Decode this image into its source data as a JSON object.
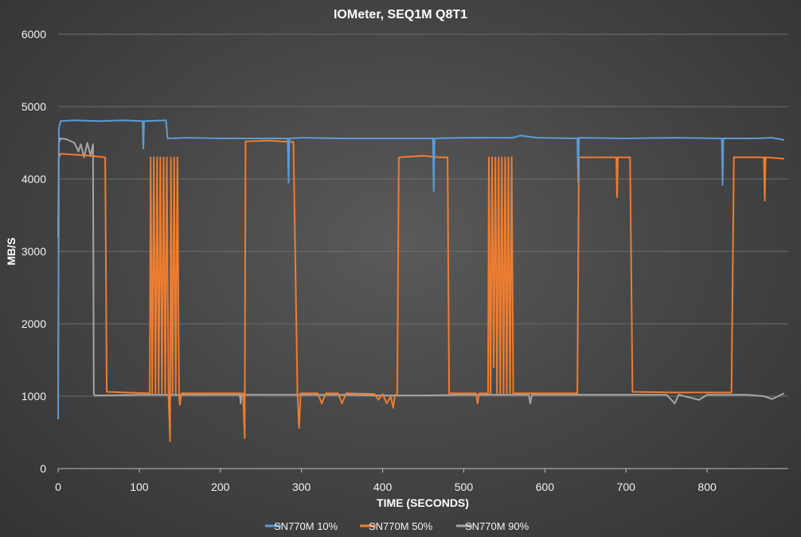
{
  "chart_data": {
    "type": "line",
    "title": "IOMeter,  SEQ1M  Q8T1",
    "xlabel": "TIME (SECONDS)",
    "ylabel": "MB/S",
    "xlim": [
      0,
      900
    ],
    "ylim": [
      0,
      6000
    ],
    "xticks": [
      0,
      100,
      200,
      300,
      400,
      500,
      600,
      700,
      800
    ],
    "yticks": [
      0,
      1000,
      2000,
      3000,
      4000,
      5000,
      6000
    ],
    "grid": "horizontal",
    "legend_position": "bottom",
    "series": [
      {
        "name": "SN770M 10%",
        "color": "#5b9bd5",
        "points": [
          [
            0,
            680
          ],
          [
            1,
            4700
          ],
          [
            3,
            4800
          ],
          [
            20,
            4810
          ],
          [
            50,
            4800
          ],
          [
            80,
            4810
          ],
          [
            104,
            4800
          ],
          [
            105,
            4420
          ],
          [
            106,
            4800
          ],
          [
            133,
            4810
          ],
          [
            135,
            4560
          ],
          [
            160,
            4570
          ],
          [
            200,
            4560
          ],
          [
            250,
            4560
          ],
          [
            283,
            4560
          ],
          [
            284,
            3950
          ],
          [
            285,
            4560
          ],
          [
            300,
            4570
          ],
          [
            350,
            4560
          ],
          [
            400,
            4560
          ],
          [
            462,
            4560
          ],
          [
            463,
            3830
          ],
          [
            464,
            4560
          ],
          [
            500,
            4570
          ],
          [
            560,
            4570
          ],
          [
            570,
            4600
          ],
          [
            590,
            4570
          ],
          [
            640,
            4560
          ],
          [
            641,
            3960
          ],
          [
            642,
            4570
          ],
          [
            700,
            4560
          ],
          [
            760,
            4570
          ],
          [
            818,
            4560
          ],
          [
            819,
            3920
          ],
          [
            820,
            4560
          ],
          [
            860,
            4560
          ],
          [
            880,
            4570
          ],
          [
            895,
            4540
          ]
        ]
      },
      {
        "name": "SN770M 50%",
        "color": "#ed7d31",
        "points": [
          [
            0,
            1000
          ],
          [
            1,
            4300
          ],
          [
            3,
            4350
          ],
          [
            30,
            4330
          ],
          [
            58,
            4300
          ],
          [
            60,
            1060
          ],
          [
            113,
            1040
          ],
          [
            114,
            4300
          ],
          [
            116,
            1040
          ],
          [
            118,
            4300
          ],
          [
            120,
            1040
          ],
          [
            122,
            4300
          ],
          [
            124,
            1040
          ],
          [
            126,
            4300
          ],
          [
            128,
            1040
          ],
          [
            130,
            4300
          ],
          [
            132,
            1040
          ],
          [
            134,
            4300
          ],
          [
            136,
            1040
          ],
          [
            138,
            380
          ],
          [
            139,
            4300
          ],
          [
            141,
            1040
          ],
          [
            143,
            4300
          ],
          [
            145,
            1040
          ],
          [
            147,
            4300
          ],
          [
            149,
            1040
          ],
          [
            150,
            880
          ],
          [
            152,
            1040
          ],
          [
            228,
            1040
          ],
          [
            230,
            420
          ],
          [
            231,
            4520
          ],
          [
            260,
            4530
          ],
          [
            290,
            4510
          ],
          [
            295,
            1040
          ],
          [
            297,
            560
          ],
          [
            299,
            1040
          ],
          [
            320,
            1040
          ],
          [
            325,
            900
          ],
          [
            330,
            1040
          ],
          [
            345,
            1040
          ],
          [
            350,
            900
          ],
          [
            355,
            1040
          ],
          [
            390,
            1030
          ],
          [
            395,
            950
          ],
          [
            400,
            1030
          ],
          [
            405,
            900
          ],
          [
            410,
            1000
          ],
          [
            413,
            840
          ],
          [
            415,
            1000
          ],
          [
            418,
            1040
          ],
          [
            420,
            4300
          ],
          [
            450,
            4320
          ],
          [
            470,
            4300
          ],
          [
            480,
            4300
          ],
          [
            482,
            1040
          ],
          [
            515,
            1040
          ],
          [
            517,
            900
          ],
          [
            519,
            1040
          ],
          [
            530,
            1040
          ],
          [
            531,
            4300
          ],
          [
            533,
            1040
          ],
          [
            535,
            4300
          ],
          [
            537,
            1400
          ],
          [
            539,
            4300
          ],
          [
            541,
            1040
          ],
          [
            543,
            4300
          ],
          [
            545,
            1040
          ],
          [
            547,
            4300
          ],
          [
            549,
            1040
          ],
          [
            551,
            4300
          ],
          [
            553,
            1040
          ],
          [
            555,
            4300
          ],
          [
            557,
            1040
          ],
          [
            559,
            4300
          ],
          [
            561,
            1040
          ],
          [
            640,
            1040
          ],
          [
            642,
            4300
          ],
          [
            680,
            4300
          ],
          [
            688,
            4300
          ],
          [
            689,
            3750
          ],
          [
            690,
            4300
          ],
          [
            705,
            4300
          ],
          [
            708,
            1060
          ],
          [
            760,
            1050
          ],
          [
            800,
            1050
          ],
          [
            830,
            1050
          ],
          [
            833,
            4300
          ],
          [
            855,
            4300
          ],
          [
            870,
            4300
          ],
          [
            871,
            3700
          ],
          [
            872,
            4300
          ],
          [
            895,
            4280
          ]
        ]
      },
      {
        "name": "SN770M 90%",
        "color": "#a5a5a5",
        "points": [
          [
            0,
            3200
          ],
          [
            1,
            4500
          ],
          [
            3,
            4560
          ],
          [
            10,
            4550
          ],
          [
            20,
            4500
          ],
          [
            25,
            4380
          ],
          [
            28,
            4480
          ],
          [
            32,
            4300
          ],
          [
            36,
            4500
          ],
          [
            40,
            4320
          ],
          [
            43,
            4480
          ],
          [
            44,
            1040
          ],
          [
            45,
            1010
          ],
          [
            100,
            1020
          ],
          [
            150,
            1020
          ],
          [
            200,
            1020
          ],
          [
            224,
            1020
          ],
          [
            225,
            900
          ],
          [
            226,
            1020
          ],
          [
            300,
            1020
          ],
          [
            350,
            1020
          ],
          [
            400,
            1010
          ],
          [
            450,
            1010
          ],
          [
            500,
            1020
          ],
          [
            550,
            1020
          ],
          [
            580,
            1020
          ],
          [
            582,
            900
          ],
          [
            584,
            1020
          ],
          [
            650,
            1020
          ],
          [
            700,
            1020
          ],
          [
            750,
            1020
          ],
          [
            760,
            900
          ],
          [
            765,
            1020
          ],
          [
            790,
            950
          ],
          [
            800,
            1020
          ],
          [
            850,
            1020
          ],
          [
            870,
            1000
          ],
          [
            880,
            960
          ],
          [
            895,
            1040
          ]
        ]
      }
    ]
  }
}
